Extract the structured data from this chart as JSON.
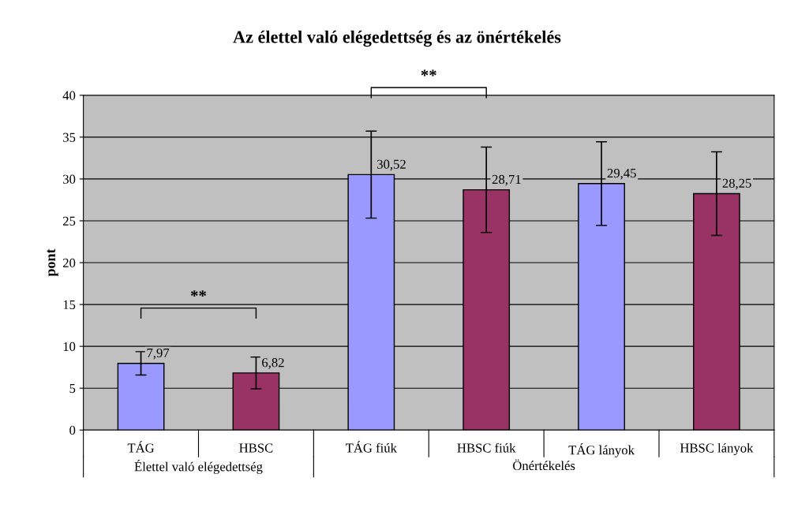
{
  "chart_data": {
    "type": "bar",
    "title": "Az élettel való elégedettség és az önértékelés",
    "ylabel": "pont",
    "categories": [
      "TÁG",
      "HBSC",
      "TÁG fiúk",
      "HBSC fiúk",
      "TÁG lányok",
      "HBSC lányok"
    ],
    "values": [
      7.97,
      6.82,
      30.52,
      28.71,
      29.45,
      28.25
    ],
    "value_labels": [
      "7,97",
      "6,82",
      "30,52",
      "28,71",
      "29,45",
      "28,25"
    ],
    "colors": [
      "#9999ff",
      "#993366",
      "#9999ff",
      "#993366",
      "#9999ff",
      "#993366"
    ],
    "errors": [
      1.4,
      1.9,
      5.2,
      5.1,
      5.0,
      5.0
    ],
    "ylim": [
      0,
      40
    ],
    "yticks": [
      0,
      5,
      10,
      15,
      20,
      25,
      30,
      35,
      40
    ],
    "grid": "y",
    "legend": false,
    "annotations": [
      "**",
      "**",
      "Élettel való elégedettség",
      "Önértékelés"
    ]
  }
}
